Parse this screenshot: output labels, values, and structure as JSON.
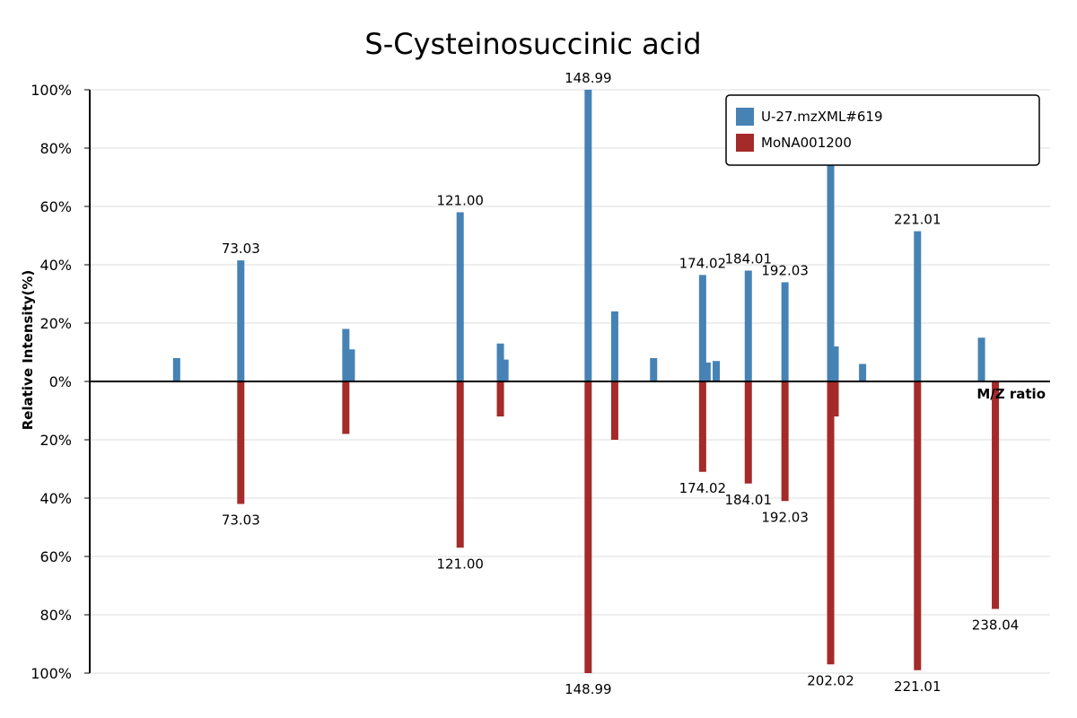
{
  "chart_data": {
    "type": "bar",
    "title": "S-Cysteinosuccinic acid",
    "xlabel": "M/Z ratio",
    "ylabel": "Relative Intensity(%)",
    "ylim": [
      -100,
      100
    ],
    "xlim": [
      40,
      250
    ],
    "yticks": [
      100,
      80,
      60,
      40,
      20,
      0,
      -20,
      -40,
      -60,
      -80,
      -100
    ],
    "ytick_labels": [
      "100%",
      "80%",
      "60%",
      "40%",
      "20%",
      "0%",
      "20%",
      "40%",
      "60%",
      "80%",
      "100%"
    ],
    "grid": true,
    "legend_position": "top-right",
    "colors": {
      "top": "#4682b4",
      "bottom": "#a52a2a"
    },
    "series": [
      {
        "name": "U-27.mzXML#619",
        "direction": "up",
        "points": [
          {
            "x": 59.0,
            "y": 8
          },
          {
            "x": 73.03,
            "y": 41.5,
            "label": "73.03"
          },
          {
            "x": 96.0,
            "y": 18
          },
          {
            "x": 97.2,
            "y": 11
          },
          {
            "x": 121.0,
            "y": 58,
            "label": "121.00"
          },
          {
            "x": 129.8,
            "y": 13
          },
          {
            "x": 130.8,
            "y": 7.5
          },
          {
            "x": 148.99,
            "y": 100,
            "label": "148.99"
          },
          {
            "x": 154.8,
            "y": 24
          },
          {
            "x": 163.3,
            "y": 8
          },
          {
            "x": 174.02,
            "y": 36.5,
            "label": "174.02"
          },
          {
            "x": 175.0,
            "y": 6.5
          },
          {
            "x": 177.0,
            "y": 7
          },
          {
            "x": 184.01,
            "y": 38,
            "label": "184.01"
          },
          {
            "x": 192.03,
            "y": 34,
            "label": "192.03"
          },
          {
            "x": 202.02,
            "y": 78,
            "label": "202.0"
          },
          {
            "x": 203.0,
            "y": 12
          },
          {
            "x": 209.0,
            "y": 6
          },
          {
            "x": 221.01,
            "y": 51.5,
            "label": "221.01"
          },
          {
            "x": 235.0,
            "y": 15
          }
        ]
      },
      {
        "name": "MoNA001200",
        "direction": "down",
        "points": [
          {
            "x": 73.03,
            "y": 42,
            "label": "73.03"
          },
          {
            "x": 96.0,
            "y": 18
          },
          {
            "x": 121.0,
            "y": 57,
            "label": "121.00"
          },
          {
            "x": 129.8,
            "y": 12
          },
          {
            "x": 148.99,
            "y": 100,
            "label": "148.99"
          },
          {
            "x": 154.8,
            "y": 20
          },
          {
            "x": 174.02,
            "y": 31,
            "label": "174.02"
          },
          {
            "x": 184.01,
            "y": 35,
            "label": "184.01"
          },
          {
            "x": 192.03,
            "y": 41,
            "label": "192.03"
          },
          {
            "x": 202.02,
            "y": 97,
            "label": "202.02"
          },
          {
            "x": 203.0,
            "y": 12
          },
          {
            "x": 221.01,
            "y": 99,
            "label": "221.01"
          },
          {
            "x": 238.04,
            "y": 78,
            "label": "238.04"
          }
        ]
      }
    ]
  }
}
